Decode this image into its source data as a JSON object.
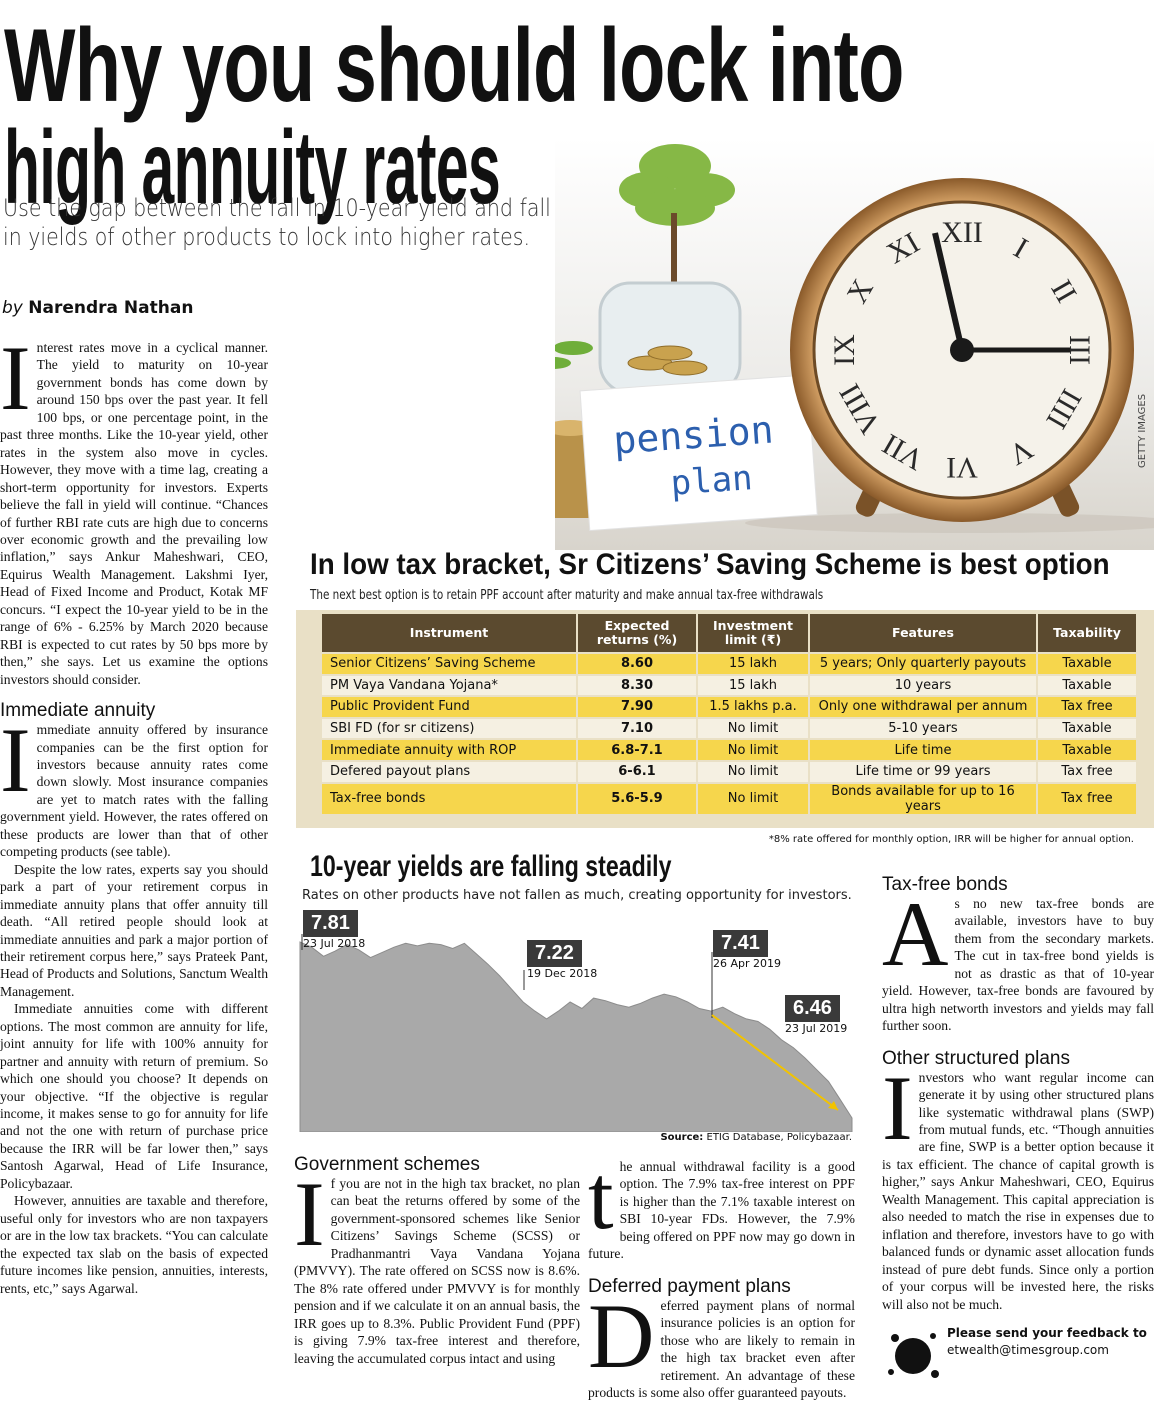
{
  "headline": {
    "title_lines": [
      "Why you should lock into",
      "high annuity rates"
    ],
    "deck_lines": [
      "Use the gap between the fall in 10-year yield and fall",
      "in yields of other products to lock into higher rates."
    ]
  },
  "byline": {
    "prefix": "by",
    "author": "Narendra Nathan"
  },
  "photo": {
    "sign_lines": [
      "pension",
      "plan"
    ],
    "credit": "GETTY IMAGES",
    "clock_numerals": [
      "XII",
      "I",
      "II",
      "III",
      "IIII",
      "V",
      "VI",
      "VII",
      "VIII",
      "IX",
      "X",
      "XI"
    ]
  },
  "intro": {
    "paragraphs": [
      "Interest rates move in a cyclical manner. The yield to maturity on 10-year government bonds has come down by around 150 bps over the past year. It fell 100 bps, or one percentage point, in the past three months. Like the 10-year yield, other rates in the system also move in cycles. However, they move with a time lag, creating a short-term opportunity for investors. Experts believe the fall in yield will continue. “Chances of further RBI rate cuts are high due to concerns over economic growth and the prevailing low inflation,” says Ankur Maheshwari, CEO, Equirus Wealth Management. Lakshmi Iyer, Head of Fixed Income and Product, Kotak MF concurs. “I expect the 10-year yield to be in the range of 6% - 6.25% by March 2020 because RBI is expected to cut rates by 50 bps more by then,” she says. Let us examine the options investors should consider."
    ]
  },
  "immediate_annuity": {
    "heading": "Immediate annuity",
    "paragraphs": [
      "Immediate annuity offered by insurance companies can be the first option for investors because annuity rates come down slowly. Most insurance companies are yet to match rates with the falling government yield. However, the rates offered on these products are lower than that of other competing products (see table).",
      "Despite the low rates, experts say you should park a part of your retirement corpus in immediate annuity plans that offer annuity till death. “All retired people should look at immediate annuities and park a major portion of their retirement corpus here,” says Prateek Pant, Head of Products and Solutions, Sanctum Wealth Management.",
      "Immediate annuities come with different options. The most common are annuity for life, joint annuity for life with 100% annuity for partner and annuity with return of premium. So which one should you choose? It depends on your objective. “If the objective is regular income, it makes sense to go for annuity for life and not the one with return of purchase price because the IRR will be far lower then,” says Santosh Agarwal, Head of Life Insurance, Policybazaar.",
      "However, annuities are taxable and therefore, useful only for investors who are non taxpayers or are in the low tax brackets. “You can calculate the expected tax slab on the basis of expected future incomes like pension, annuities, interests, rents, etc,” says Agarwal."
    ]
  },
  "table_section": {
    "title": "In low tax bracket, Sr Citizens’ Saving Scheme is best option",
    "subtitle": "The next best option is to retain PPF account after maturity and make annual tax-free withdrawals",
    "headers": [
      "Instrument",
      "Expected returns (%)",
      "Investment limit (₹)",
      "Features",
      "Taxability"
    ],
    "rows": [
      [
        "Senior Citizens’ Saving Scheme",
        "8.60",
        "15 lakh",
        "5 years; Only quarterly payouts",
        "Taxable"
      ],
      [
        "PM Vaya Vandana Yojana*",
        "8.30",
        "15 lakh",
        "10 years",
        "Taxable"
      ],
      [
        "Public Provident Fund",
        "7.90",
        "1.5 lakhs p.a.",
        "Only one withdrawal per annum",
        "Tax free"
      ],
      [
        "SBI FD (for sr citizens)",
        "7.10",
        "No limit",
        "5-10 years",
        "Taxable"
      ],
      [
        "Immediate annuity with ROP",
        "6.8-7.1",
        "No limit",
        "Life time",
        "Taxable"
      ],
      [
        "Defered payout plans",
        "6-6.1",
        "No limit",
        "Life time or 99 years",
        "Tax free"
      ],
      [
        "Tax-free bonds",
        "5.6-5.9",
        "No limit",
        "Bonds available for up to 16 years",
        "Tax free"
      ]
    ],
    "footnote": "*8% rate offered for monthly option, IRR will be higher for annual option."
  },
  "yield_chart": {
    "title": "10-year yields are falling steadily",
    "subtitle": "Rates on other products have not fallen as much, creating opportunity for investors.",
    "callouts": [
      {
        "value": 7.81,
        "date": "23 Jul 2018"
      },
      {
        "value": 7.22,
        "date": "19 Dec 2018"
      },
      {
        "value": 7.41,
        "date": "26 Apr 2019"
      },
      {
        "value": 6.46,
        "date": "23 Jul 2019"
      }
    ],
    "values": [
      7.81,
      7.77,
      7.7,
      7.74,
      7.79,
      7.75,
      7.69,
      7.73,
      7.77,
      7.8,
      7.78,
      7.8,
      7.79,
      7.76,
      7.8,
      7.72,
      7.64,
      7.55,
      7.45,
      7.35,
      7.28,
      7.22,
      7.28,
      7.35,
      7.3,
      7.38,
      7.36,
      7.33,
      7.31,
      7.34,
      7.38,
      7.41,
      7.39,
      7.35,
      7.3,
      7.28,
      7.31,
      7.26,
      7.22,
      7.2,
      7.14,
      7.06,
      7.0,
      6.92,
      6.83,
      6.74,
      6.6,
      6.46
    ],
    "source_label": "Source:",
    "source": "ETIG Database, Policybazaar."
  },
  "government_schemes": {
    "heading": "Government schemes",
    "parts": [
      "If you are not in the high tax bracket, no plan can beat the returns offered by some of the government-sponsored schemes like Senior Citizens’ Savings Scheme (SCSS) or Pradhanmantri Vaya Vandana Yojana (PMVVY). The rate offered on SCSS now is 8.6%. The 8% rate offered under PMVVY is for monthly pension and if we calculate it on an annual basis, the IRR goes up to 8.3%. Public Provident Fund (PPF) is giving 7.9% tax-free interest and therefore, leaving the accumulated corpus intact and using",
      "the annual withdrawal facility is a good option. The 7.9% tax-free interest on PPF is higher than the 7.1% taxable interest on SBI 10-year FDs. However, the 7.9% being offered on PPF now may go down in future."
    ]
  },
  "deferred_payment": {
    "heading": "Deferred payment plans",
    "paragraphs": [
      "Deferred payment plans of normal insurance policies is an option for those who are likely to remain in the high tax bracket even after retirement. An advantage of these products is some also offer guaranteed payouts."
    ]
  },
  "tax_free_bonds": {
    "heading": "Tax-free bonds",
    "paragraphs": [
      "As no new tax-free bonds are available, investors have to buy them from the secondary markets. The cut in tax-free bond yields is not as drastic as that of 10-year yield. However, tax-free bonds are favoured by ultra high networth investors and yields may fall further soon."
    ]
  },
  "structured_plans": {
    "heading": "Other structured plans",
    "paragraphs": [
      "Investors who want regular income can generate it by using other structured plans like systematic withdrawal plans (SWP) from mutual funds, etc. “Though annuities are fine, SWP is a better option because it is tax efficient. The chance of capital growth is higher,” says Ankur Maheshwari, CEO, Equirus Wealth Management. This capital appreciation is also needed to match the rise in expenses due to inflation and therefore, investors have to go with balanced funds or dynamic asset allocation funds instead of pure debt funds. Since only a portion of your corpus will be invested here, the risks will also not be much."
    ]
  },
  "feedback": {
    "text": "Please send your feedback to",
    "email": "etwealth@timesgroup.com"
  }
}
